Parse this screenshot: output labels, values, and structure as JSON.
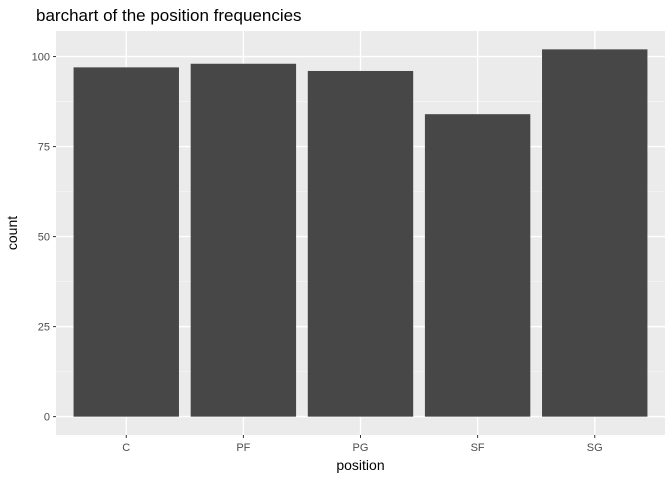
{
  "chart_data": {
    "type": "bar",
    "title": "barchart of the position frequencies",
    "xlabel": "position",
    "ylabel": "count",
    "categories": [
      "C",
      "PF",
      "PG",
      "SF",
      "SG"
    ],
    "values": [
      97,
      98,
      96,
      84,
      102
    ],
    "ylim": [
      -5.1,
      107.1
    ],
    "yticks": [
      0,
      25,
      50,
      75,
      100
    ],
    "grid": true,
    "legend": "none",
    "colors": {
      "panel": "#ebebeb",
      "bar": "#474747",
      "grid_major": "#ffffff",
      "grid_minor": "#f5f5f5",
      "tick_label": "#4d4d4d",
      "tick_mark": "#333333"
    }
  }
}
